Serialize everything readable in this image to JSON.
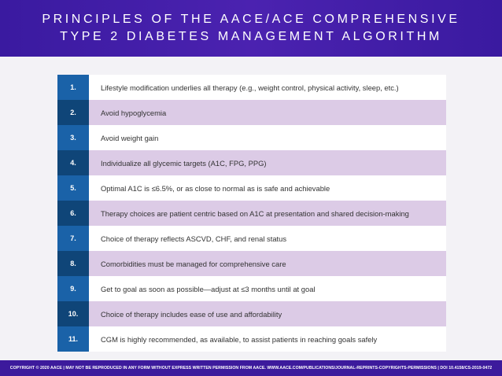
{
  "header": {
    "title_line1": "PRINCIPLES OF THE AACE/ACE COMPREHENSIVE",
    "title_line2": "TYPE 2 DIABETES MANAGEMENT ALGORITHM"
  },
  "principles": [
    {
      "number": "1.",
      "text": "Lifestyle modification underlies all therapy (e.g., weight control, physical activity, sleep, etc.)"
    },
    {
      "number": "2.",
      "text": "Avoid hypoglycemia"
    },
    {
      "number": "3.",
      "text": "Avoid weight gain"
    },
    {
      "number": "4.",
      "text": "Individualize all glycemic targets (A1C, FPG, PPG)"
    },
    {
      "number": "5.",
      "text": "Optimal A1C is ≤6.5%, or as close to normal as is safe and achievable"
    },
    {
      "number": "6.",
      "text": "Therapy choices are patient centric based on A1C at presentation and shared decision-making"
    },
    {
      "number": "7.",
      "text": "Choice of therapy reflects ASCVD, CHF, and renal status"
    },
    {
      "number": "8.",
      "text": "Comorbidities must be managed for comprehensive care"
    },
    {
      "number": "9.",
      "text": "Get to goal as soon as possible—adjust at ≤3 months until at goal"
    },
    {
      "number": "10.",
      "text": "Choice of therapy includes ease of use and affordability"
    },
    {
      "number": "11.",
      "text": "CGM is highly recommended, as available, to assist patients in reaching goals safely"
    }
  ],
  "footer": {
    "copyright": "COPYRIGHT © 2020 AACE | MAY NOT BE REPRODUCED IN ANY FORM WITHOUT EXPRESS WRITTEN PERMISSION FROM AACE. WWW.AACE.COM/PUBLICATIONS/JOURNAL-REPRINTS-COPYRIGHTS-PERMISSIONS | DOI 10.4158/CS-2019-0472"
  },
  "colors": {
    "header_bg": "#4b22b0",
    "number_cell_light": "#1a62a8",
    "number_cell_dark": "#0f4578",
    "row_alt_bg": "#dccbe6"
  }
}
